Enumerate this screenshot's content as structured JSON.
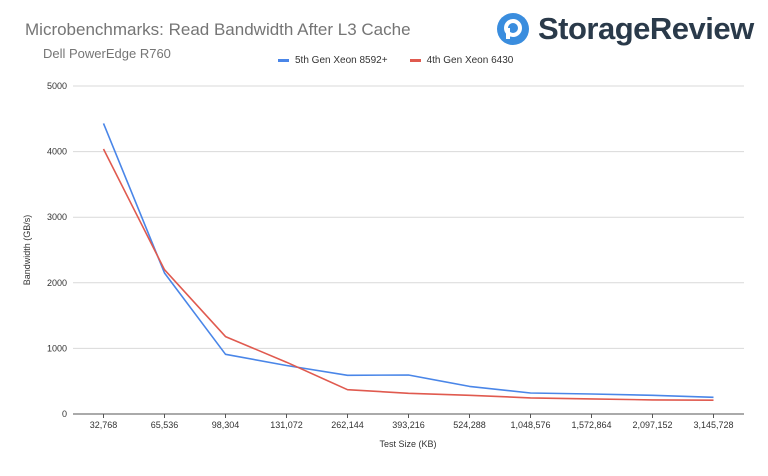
{
  "title": "Microbenchmarks: Read Bandwidth After L3 Cache",
  "subtitle": "Dell PowerEdge R760",
  "logo": {
    "text": "StorageReview",
    "icon": "storagereview-logo-icon"
  },
  "colors": {
    "series1": "#4a86e8",
    "series2": "#e05a4f",
    "grid": "#d9d9d9",
    "brand": "#3a8dde"
  },
  "chart_data": {
    "type": "line",
    "title": "Microbenchmarks: Read Bandwidth After L3 Cache",
    "subtitle": "Dell PowerEdge R760",
    "xlabel": "Test Size (KB)",
    "ylabel": "Bandwidth (GB/s)",
    "categories": [
      "32,768",
      "65,536",
      "98,304",
      "131,072",
      "262,144",
      "393,216",
      "524,288",
      "1,048,576",
      "1,572,864",
      "2,097,152",
      "3,145,728"
    ],
    "series": [
      {
        "name": "5th Gen Xeon 8592+",
        "color": "#4a86e8",
        "values": [
          4430,
          2150,
          910,
          740,
          590,
          595,
          420,
          320,
          305,
          285,
          255
        ]
      },
      {
        "name": "4th Gen Xeon 6430",
        "color": "#e05a4f",
        "values": [
          4040,
          2200,
          1180,
          790,
          370,
          315,
          285,
          245,
          230,
          215,
          210
        ]
      }
    ],
    "ylim": [
      0,
      5000
    ],
    "yticks": [
      0,
      1000,
      2000,
      3000,
      4000,
      5000
    ],
    "grid": true,
    "legend_position": "top-center"
  }
}
